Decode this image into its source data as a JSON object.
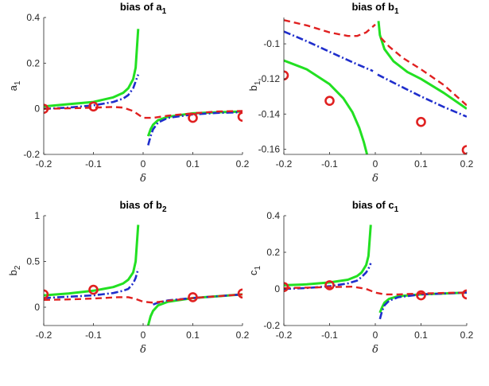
{
  "chart_data": [
    {
      "type": "line",
      "title": "bias of a",
      "title_sub": "1",
      "xlabel": "δ",
      "ylabel": "a",
      "ylabel_sub": "1",
      "xlim": [
        -0.2,
        0.2
      ],
      "ylim": [
        -0.2,
        0.4
      ],
      "xticks": [
        -0.2,
        -0.1,
        0,
        0.1,
        0.2
      ],
      "xtick_labels": [
        "-0.2",
        "-0.1",
        "0",
        "0.1",
        "0.2"
      ],
      "yticks": [
        -0.2,
        0,
        0.2,
        0.4
      ],
      "ytick_labels": [
        "-0.2",
        "0",
        "0.2",
        "0.4"
      ],
      "series": [
        {
          "style": "solid",
          "color": "#22e022",
          "segments": [
            [
              [
                -0.2,
                0.01
              ],
              [
                -0.15,
                0.02
              ],
              [
                -0.1,
                0.03
              ],
              [
                -0.06,
                0.05
              ],
              [
                -0.04,
                0.07
              ],
              [
                -0.03,
                0.09
              ],
              [
                -0.02,
                0.13
              ],
              [
                -0.015,
                0.18
              ],
              [
                -0.01,
                0.35
              ]
            ],
            [
              [
                0.01,
                -0.12
              ],
              [
                0.015,
                -0.09
              ],
              [
                0.02,
                -0.07
              ],
              [
                0.03,
                -0.05
              ],
              [
                0.05,
                -0.035
              ],
              [
                0.1,
                -0.02
              ],
              [
                0.15,
                -0.015
              ],
              [
                0.2,
                -0.012
              ]
            ]
          ]
        },
        {
          "style": "dashdot",
          "color": "#1f2ecc",
          "segments": [
            [
              [
                -0.2,
                0.0
              ],
              [
                -0.15,
                0.005
              ],
              [
                -0.1,
                0.015
              ],
              [
                -0.06,
                0.03
              ],
              [
                -0.04,
                0.045
              ],
              [
                -0.03,
                0.06
              ],
              [
                -0.02,
                0.09
              ],
              [
                -0.015,
                0.12
              ],
              [
                -0.01,
                0.15
              ]
            ],
            [
              [
                0.01,
                -0.16
              ],
              [
                0.015,
                -0.12
              ],
              [
                0.02,
                -0.09
              ],
              [
                0.03,
                -0.06
              ],
              [
                0.05,
                -0.04
              ],
              [
                0.1,
                -0.025
              ],
              [
                0.15,
                -0.018
              ],
              [
                0.2,
                -0.015
              ]
            ]
          ]
        },
        {
          "style": "dashed",
          "color": "#e02020",
          "segments": [
            [
              [
                -0.2,
                0.0
              ],
              [
                -0.15,
                0.002
              ],
              [
                -0.1,
                0.005
              ],
              [
                -0.06,
                0.008
              ],
              [
                -0.04,
                0.005
              ],
              [
                -0.02,
                -0.01
              ],
              [
                0.0,
                -0.04
              ],
              [
                0.02,
                -0.04
              ],
              [
                0.05,
                -0.03
              ],
              [
                0.1,
                -0.02
              ],
              [
                0.15,
                -0.012
              ],
              [
                0.2,
                -0.01
              ]
            ]
          ]
        }
      ],
      "markers": {
        "color": "#e02020",
        "x": [
          -0.2,
          -0.1,
          0.1,
          0.2
        ],
        "y": [
          0.0,
          0.01,
          -0.04,
          -0.035
        ]
      }
    },
    {
      "type": "line",
      "title": "bias of b",
      "title_sub": "1",
      "xlabel": "δ",
      "ylabel": "b",
      "ylabel_sub": "1",
      "xlim": [
        -0.2,
        0.2
      ],
      "ylim": [
        -0.163,
        -0.085
      ],
      "xticks": [
        -0.2,
        -0.1,
        0,
        0.1,
        0.2
      ],
      "xtick_labels": [
        "-0.2",
        "-0.1",
        "0",
        "0.1",
        "0.2"
      ],
      "yticks": [
        -0.16,
        -0.14,
        -0.12,
        -0.1
      ],
      "ytick_labels": [
        "-0.16",
        "-0.14",
        "-0.12",
        "-0.1"
      ],
      "series": [
        {
          "style": "solid",
          "color": "#22e022",
          "segments": [
            [
              [
                -0.2,
                -0.1095
              ],
              [
                -0.15,
                -0.1145
              ],
              [
                -0.1,
                -0.123
              ],
              [
                -0.07,
                -0.131
              ],
              [
                -0.05,
                -0.139
              ],
              [
                -0.035,
                -0.148
              ],
              [
                -0.025,
                -0.156
              ],
              [
                -0.018,
                -0.163
              ]
            ],
            [
              [
                0.007,
                -0.087
              ],
              [
                0.01,
                -0.095
              ],
              [
                0.02,
                -0.103
              ],
              [
                0.04,
                -0.11
              ],
              [
                0.07,
                -0.116
              ],
              [
                0.1,
                -0.12
              ],
              [
                0.15,
                -0.128
              ],
              [
                0.2,
                -0.137
              ]
            ]
          ]
        },
        {
          "style": "dashdot",
          "color": "#1f2ecc",
          "segments": [
            [
              [
                -0.2,
                -0.093
              ],
              [
                -0.15,
                -0.0985
              ],
              [
                -0.1,
                -0.1045
              ],
              [
                -0.05,
                -0.1105
              ],
              [
                -0.005,
                -0.1155
              ]
            ],
            [
              [
                0.005,
                -0.1175
              ],
              [
                0.05,
                -0.1235
              ],
              [
                0.1,
                -0.13
              ],
              [
                0.15,
                -0.136
              ],
              [
                0.2,
                -0.1415
              ]
            ]
          ]
        },
        {
          "style": "dashed",
          "color": "#e02020",
          "segments": [
            [
              [
                -0.2,
                -0.0865
              ],
              [
                -0.15,
                -0.0895
              ],
              [
                -0.1,
                -0.0935
              ],
              [
                -0.06,
                -0.0955
              ],
              [
                -0.04,
                -0.0955
              ],
              [
                -0.02,
                -0.0935
              ],
              [
                0.0,
                -0.089
              ]
            ],
            [
              [
                0.012,
                -0.0965
              ],
              [
                0.03,
                -0.1015
              ],
              [
                0.06,
                -0.108
              ],
              [
                0.1,
                -0.1145
              ],
              [
                0.15,
                -0.1235
              ],
              [
                0.2,
                -0.135
              ]
            ]
          ]
        }
      ],
      "markers": {
        "color": "#e02020",
        "x": [
          -0.2,
          -0.1,
          0.1,
          0.2
        ],
        "y": [
          -0.118,
          -0.1325,
          -0.1445,
          -0.1605
        ]
      }
    },
    {
      "type": "line",
      "title": "bias of b",
      "title_sub": "2",
      "xlabel": "δ",
      "ylabel": "b",
      "ylabel_sub": "2",
      "xlim": [
        -0.2,
        0.2
      ],
      "ylim": [
        -0.2,
        1.0
      ],
      "xticks": [
        -0.2,
        -0.1,
        0,
        0.1,
        0.2
      ],
      "xtick_labels": [
        "-0.2",
        "-0.1",
        "0",
        "0.1",
        "0.2"
      ],
      "yticks": [
        0,
        0.5,
        1
      ],
      "ytick_labels": [
        "0",
        "0.5",
        "1"
      ],
      "series": [
        {
          "style": "solid",
          "color": "#22e022",
          "segments": [
            [
              [
                -0.2,
                0.13
              ],
              [
                -0.15,
                0.15
              ],
              [
                -0.1,
                0.18
              ],
              [
                -0.06,
                0.22
              ],
              [
                -0.04,
                0.26
              ],
              [
                -0.03,
                0.3
              ],
              [
                -0.02,
                0.38
              ],
              [
                -0.015,
                0.5
              ],
              [
                -0.01,
                0.9
              ]
            ],
            [
              [
                0.01,
                -0.2
              ],
              [
                0.015,
                -0.1
              ],
              [
                0.02,
                -0.04
              ],
              [
                0.03,
                0.02
              ],
              [
                0.05,
                0.06
              ],
              [
                0.1,
                0.1
              ],
              [
                0.15,
                0.12
              ],
              [
                0.2,
                0.14
              ]
            ]
          ]
        },
        {
          "style": "dashdot",
          "color": "#1f2ecc",
          "segments": [
            [
              [
                -0.2,
                0.1
              ],
              [
                -0.15,
                0.115
              ],
              [
                -0.1,
                0.13
              ],
              [
                -0.06,
                0.155
              ],
              [
                -0.04,
                0.18
              ],
              [
                -0.03,
                0.2
              ],
              [
                -0.02,
                0.26
              ],
              [
                -0.015,
                0.32
              ],
              [
                -0.01,
                0.42
              ]
            ],
            [
              [
                0.02,
                0.03
              ],
              [
                0.03,
                0.05
              ],
              [
                0.05,
                0.075
              ],
              [
                0.1,
                0.1
              ],
              [
                0.15,
                0.12
              ],
              [
                0.2,
                0.14
              ]
            ]
          ]
        },
        {
          "style": "dashed",
          "color": "#e02020",
          "segments": [
            [
              [
                -0.2,
                0.08
              ],
              [
                -0.15,
                0.085
              ],
              [
                -0.1,
                0.095
              ],
              [
                -0.05,
                0.11
              ],
              [
                -0.03,
                0.11
              ],
              [
                -0.015,
                0.09
              ],
              [
                0.0,
                0.06
              ],
              [
                0.02,
                0.05
              ],
              [
                0.05,
                0.07
              ],
              [
                0.1,
                0.1
              ],
              [
                0.15,
                0.12
              ],
              [
                0.2,
                0.14
              ]
            ]
          ]
        }
      ],
      "markers": {
        "color": "#e02020",
        "x": [
          -0.2,
          -0.1,
          0.1,
          0.2
        ],
        "y": [
          0.14,
          0.19,
          0.11,
          0.15
        ]
      }
    },
    {
      "type": "line",
      "title": "bias of c",
      "title_sub": "1",
      "xlabel": "δ",
      "ylabel": "c",
      "ylabel_sub": "1",
      "xlim": [
        -0.2,
        0.2
      ],
      "ylim": [
        -0.2,
        0.4
      ],
      "xticks": [
        -0.2,
        -0.1,
        0,
        0.1,
        0.2
      ],
      "xtick_labels": [
        "-0.2",
        "-0.1",
        "0",
        "0.1",
        "0.2"
      ],
      "yticks": [
        -0.2,
        0,
        0.2,
        0.4
      ],
      "ytick_labels": [
        "-0.2",
        "0",
        "0.2",
        "0.4"
      ],
      "series": [
        {
          "style": "solid",
          "color": "#22e022",
          "segments": [
            [
              [
                -0.2,
                0.02
              ],
              [
                -0.15,
                0.025
              ],
              [
                -0.1,
                0.035
              ],
              [
                -0.06,
                0.05
              ],
              [
                -0.04,
                0.07
              ],
              [
                -0.03,
                0.09
              ],
              [
                -0.02,
                0.13
              ],
              [
                -0.015,
                0.18
              ],
              [
                -0.01,
                0.35
              ]
            ],
            [
              [
                0.01,
                -0.13
              ],
              [
                0.015,
                -0.1
              ],
              [
                0.02,
                -0.075
              ],
              [
                0.03,
                -0.055
              ],
              [
                0.05,
                -0.04
              ],
              [
                0.1,
                -0.03
              ],
              [
                0.15,
                -0.025
              ],
              [
                0.2,
                -0.02
              ]
            ]
          ]
        },
        {
          "style": "dashdot",
          "color": "#1f2ecc",
          "segments": [
            [
              [
                -0.2,
                0.0
              ],
              [
                -0.15,
                0.005
              ],
              [
                -0.1,
                0.015
              ],
              [
                -0.06,
                0.03
              ],
              [
                -0.04,
                0.045
              ],
              [
                -0.03,
                0.065
              ],
              [
                -0.02,
                0.09
              ],
              [
                -0.015,
                0.11
              ],
              [
                -0.01,
                0.14
              ]
            ],
            [
              [
                0.01,
                -0.165
              ],
              [
                0.015,
                -0.12
              ],
              [
                0.02,
                -0.09
              ],
              [
                0.03,
                -0.065
              ],
              [
                0.05,
                -0.045
              ],
              [
                0.1,
                -0.03
              ],
              [
                0.15,
                -0.025
              ],
              [
                0.2,
                -0.02
              ]
            ]
          ]
        },
        {
          "style": "dashed",
          "color": "#e02020",
          "segments": [
            [
              [
                -0.2,
                0.005
              ],
              [
                -0.15,
                0.007
              ],
              [
                -0.1,
                0.01
              ],
              [
                -0.05,
                0.012
              ],
              [
                -0.02,
                0.0
              ],
              [
                0.0,
                -0.02
              ],
              [
                0.02,
                -0.03
              ],
              [
                0.05,
                -0.03
              ],
              [
                0.1,
                -0.025
              ],
              [
                0.15,
                -0.022
              ],
              [
                0.2,
                -0.02
              ]
            ]
          ]
        }
      ],
      "markers": {
        "color": "#e02020",
        "x": [
          -0.2,
          -0.1,
          0.1,
          0.2
        ],
        "y": [
          0.01,
          0.02,
          -0.035,
          -0.03
        ]
      }
    }
  ]
}
